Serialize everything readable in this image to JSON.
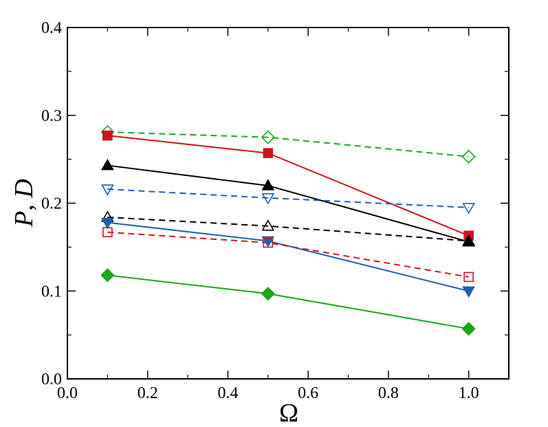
{
  "chart_data": {
    "type": "line",
    "xlabel": "Ω",
    "ylabel_parts": [
      "P",
      ", ",
      "D"
    ],
    "xlim": [
      0,
      1.1
    ],
    "ylim": [
      0,
      0.4
    ],
    "xticks": [
      0,
      0.2,
      0.4,
      0.6,
      0.8,
      1.0
    ],
    "xtick_labels": [
      "0.0",
      "0.2",
      "0.4",
      "0.6",
      "0.8",
      "1.0"
    ],
    "yticks": [
      0,
      0.1,
      0.2,
      0.3,
      0.4
    ],
    "ytick_labels": [
      "0.0",
      "0.1",
      "0.2",
      "0.3",
      "0.4"
    ],
    "x": [
      0.1,
      0.5,
      1.0
    ],
    "series": [
      {
        "name": "green-open-diamond-dashed",
        "color": "#1aa81a",
        "dash": true,
        "marker": "diamond",
        "filled": false,
        "values": [
          0.281,
          0.275,
          0.253
        ]
      },
      {
        "name": "red-filled-square-solid",
        "color": "#d0141e",
        "dash": false,
        "marker": "square",
        "filled": true,
        "values": [
          0.277,
          0.257,
          0.163
        ]
      },
      {
        "name": "black-filled-triangle-solid",
        "color": "#000000",
        "dash": false,
        "marker": "triangle",
        "filled": true,
        "values": [
          0.243,
          0.22,
          0.156
        ]
      },
      {
        "name": "blue-open-triangle-down-dashed",
        "color": "#1f5fad",
        "dash": true,
        "marker": "triangle-down",
        "filled": false,
        "values": [
          0.216,
          0.206,
          0.195
        ]
      },
      {
        "name": "black-open-triangle-dashed",
        "color": "#000000",
        "dash": true,
        "marker": "triangle",
        "filled": false,
        "values": [
          0.184,
          0.174,
          0.157
        ]
      },
      {
        "name": "blue-filled-triangle-down-solid",
        "color": "#1f5fad",
        "dash": false,
        "marker": "triangle-down",
        "filled": true,
        "values": [
          0.178,
          0.157,
          0.1
        ]
      },
      {
        "name": "red-open-square-dashed",
        "color": "#d0141e",
        "dash": true,
        "marker": "square",
        "filled": false,
        "values": [
          0.167,
          0.155,
          0.116
        ]
      },
      {
        "name": "green-filled-diamond-solid",
        "color": "#1aa81a",
        "dash": false,
        "marker": "diamond",
        "filled": true,
        "values": [
          0.118,
          0.097,
          0.057
        ]
      }
    ]
  }
}
